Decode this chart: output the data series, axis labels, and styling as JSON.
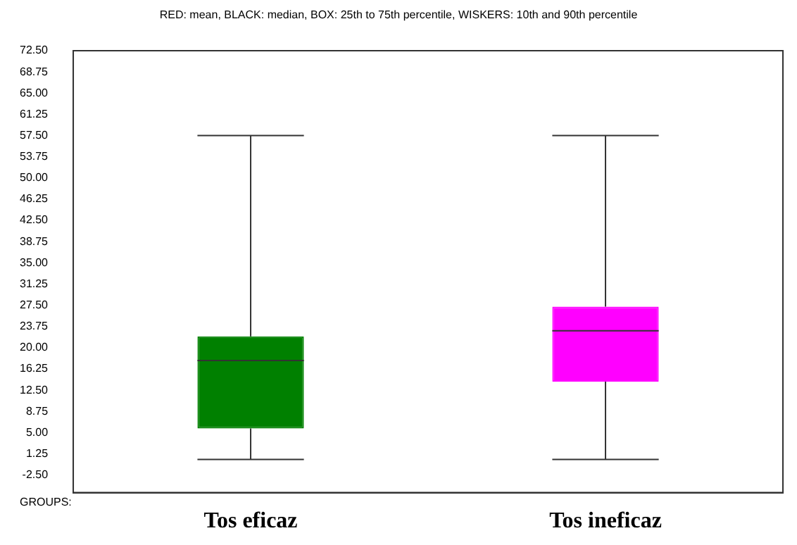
{
  "chart_data": {
    "type": "box",
    "title": "RED: mean, BLACK: median, BOX: 25th to 75th percentile, WISKERS: 10th and 90th percentile",
    "categories": [
      "Tos eficaz",
      "Tos ineficaz"
    ],
    "boxes": [
      {
        "low": 0.25,
        "q1": 5.75,
        "median": 17.75,
        "q3": 22,
        "high": 57.5
      },
      {
        "low": 0.25,
        "q1": 14,
        "median": 23,
        "q3": 27.25,
        "high": 57.5
      }
    ],
    "colors": [
      "#008000",
      "#ff00ff"
    ],
    "ylim": [
      -5.6,
      72.5
    ],
    "yticks": [
      {
        "value": -2.5,
        "label": "-2.50"
      },
      1.25,
      {
        "value": 5,
        "label": "5.00"
      },
      8.75,
      {
        "value": 12.5,
        "label": "12.50"
      },
      16.25,
      {
        "value": 20,
        "label": "20.00"
      },
      23.75,
      {
        "value": 27.5,
        "label": "27.50"
      },
      31.25,
      {
        "value": 35,
        "label": "35.00"
      },
      38.75,
      {
        "value": 42.5,
        "label": "42.50"
      },
      46.25,
      {
        "value": 50,
        "label": "50.00"
      },
      53.75,
      {
        "value": 57.5,
        "label": "57.50"
      },
      61.25,
      {
        "value": 65,
        "label": "65.00"
      },
      68.75,
      {
        "value": 72.5,
        "label": "72.50"
      }
    ],
    "annotations": [
      "GROUPS:"
    ],
    "grid": false,
    "legend": false
  }
}
